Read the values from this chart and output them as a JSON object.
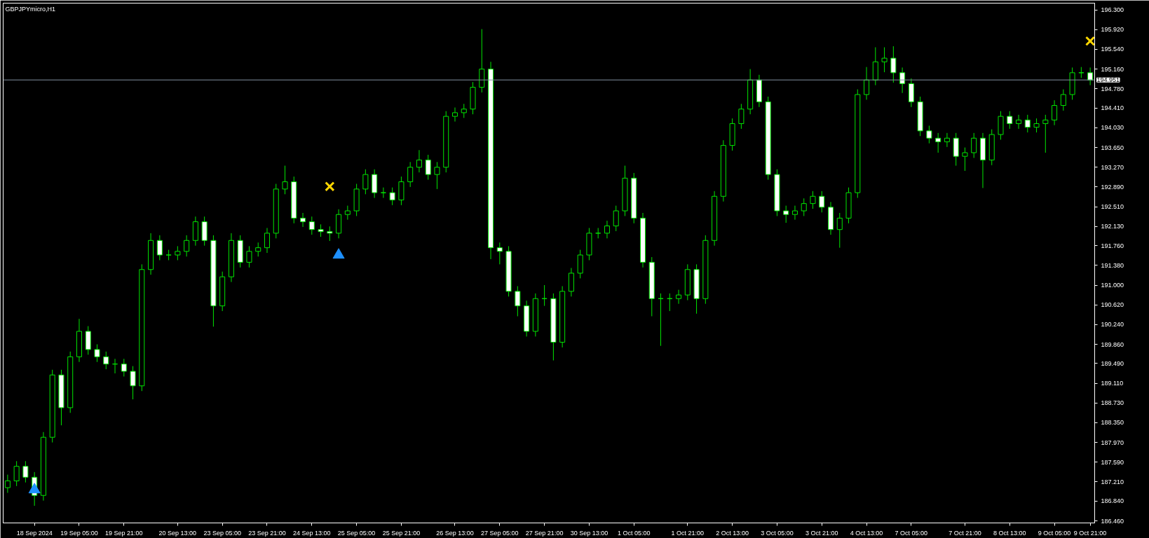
{
  "chart_data": {
    "type": "candlestick",
    "title": "GBPJPYmicro,H1",
    "categories": [
      null,
      null,
      null,
      "18 Sep 2024",
      null,
      null,
      null,
      null,
      "19 Sep 05:00",
      null,
      null,
      null,
      null,
      "19 Sep 21:00",
      null,
      null,
      null,
      null,
      null,
      "20 Sep 13:00",
      null,
      null,
      null,
      null,
      "23 Sep 05:00",
      null,
      null,
      null,
      null,
      "23 Sep 21:00",
      null,
      null,
      null,
      null,
      "24 Sep 13:00",
      null,
      null,
      null,
      null,
      "25 Sep 05:00",
      null,
      null,
      null,
      null,
      "25 Sep 21:00",
      null,
      null,
      null,
      null,
      null,
      "26 Sep 13:00",
      null,
      null,
      null,
      null,
      "27 Sep 05:00",
      null,
      null,
      null,
      null,
      "27 Sep 21:00",
      null,
      null,
      null,
      null,
      "30 Sep 13:00",
      null,
      null,
      null,
      null,
      "1 Oct 05:00",
      null,
      null,
      null,
      null,
      null,
      "1 Oct 21:00",
      null,
      null,
      null,
      null,
      "2 Oct 13:00",
      null,
      null,
      null,
      null,
      "3 Oct 05:00",
      null,
      null,
      null,
      null,
      "3 Oct 21:00",
      null,
      null,
      null,
      null,
      "4 Oct 13:00",
      null,
      null,
      null,
      null,
      "7 Oct 05:00",
      null,
      null,
      null,
      null,
      null,
      "7 Oct 21:00",
      null,
      null,
      null,
      null,
      "8 Oct 13:00",
      null,
      null,
      null,
      null,
      "9 Oct 05:00",
      null,
      null,
      null,
      "9 Oct 21:00"
    ],
    "ohlc": [
      [
        187.1,
        187.35,
        187.0,
        187.23
      ],
      [
        187.23,
        187.61,
        187.13,
        187.51
      ],
      [
        187.51,
        187.61,
        187.2,
        187.3
      ],
      [
        187.3,
        187.4,
        186.75,
        186.95
      ],
      [
        186.95,
        188.17,
        186.85,
        188.07
      ],
      [
        188.07,
        189.37,
        187.97,
        189.27
      ],
      [
        189.27,
        189.37,
        188.3,
        188.64
      ],
      [
        188.64,
        189.72,
        188.54,
        189.62
      ],
      [
        189.62,
        190.35,
        189.52,
        190.11
      ],
      [
        190.11,
        190.21,
        189.66,
        189.76
      ],
      [
        189.76,
        189.86,
        189.52,
        189.62
      ],
      [
        189.62,
        189.72,
        189.38,
        189.48
      ],
      [
        189.48,
        189.58,
        189.3,
        189.48
      ],
      [
        189.48,
        189.58,
        189.24,
        189.34
      ],
      [
        189.34,
        189.44,
        188.8,
        189.06
      ],
      [
        189.06,
        191.4,
        188.96,
        191.3
      ],
      [
        191.3,
        192.0,
        191.2,
        191.86
      ],
      [
        191.86,
        191.96,
        191.48,
        191.58
      ],
      [
        191.58,
        191.68,
        191.48,
        191.58
      ],
      [
        191.58,
        191.75,
        191.48,
        191.65
      ],
      [
        191.65,
        191.96,
        191.55,
        191.86
      ],
      [
        191.86,
        192.32,
        191.76,
        192.22
      ],
      [
        192.22,
        192.32,
        191.76,
        191.86
      ],
      [
        191.86,
        191.96,
        190.2,
        190.6
      ],
      [
        190.6,
        191.26,
        190.5,
        191.16
      ],
      [
        191.16,
        192.0,
        191.06,
        191.86
      ],
      [
        191.86,
        191.96,
        191.34,
        191.44
      ],
      [
        191.44,
        191.75,
        191.34,
        191.65
      ],
      [
        191.65,
        191.82,
        191.55,
        191.72
      ],
      [
        191.72,
        192.1,
        191.62,
        192.0
      ],
      [
        192.0,
        192.95,
        191.9,
        192.85
      ],
      [
        192.85,
        193.3,
        192.75,
        192.99
      ],
      [
        192.99,
        193.09,
        192.19,
        192.29
      ],
      [
        192.29,
        192.39,
        192.12,
        192.22
      ],
      [
        192.22,
        192.32,
        191.97,
        192.07
      ],
      [
        192.07,
        192.17,
        191.93,
        192.03
      ],
      [
        192.03,
        192.13,
        191.85,
        192.0
      ],
      [
        192.0,
        192.46,
        191.9,
        192.36
      ],
      [
        192.36,
        192.53,
        192.26,
        192.43
      ],
      [
        192.43,
        192.95,
        192.33,
        192.85
      ],
      [
        192.85,
        193.23,
        192.75,
        193.13
      ],
      [
        193.13,
        193.23,
        192.68,
        192.78
      ],
      [
        192.78,
        192.88,
        192.68,
        192.78
      ],
      [
        192.78,
        192.88,
        192.54,
        192.64
      ],
      [
        192.64,
        193.09,
        192.54,
        192.99
      ],
      [
        192.99,
        193.37,
        192.89,
        193.27
      ],
      [
        193.27,
        193.6,
        193.17,
        193.41
      ],
      [
        193.41,
        193.51,
        193.03,
        193.13
      ],
      [
        193.13,
        193.37,
        192.85,
        193.27
      ],
      [
        193.27,
        194.35,
        193.17,
        194.25
      ],
      [
        194.25,
        194.42,
        194.15,
        194.32
      ],
      [
        194.32,
        194.49,
        194.22,
        194.39
      ],
      [
        194.39,
        194.91,
        194.29,
        194.81
      ],
      [
        194.81,
        195.93,
        194.71,
        195.16
      ],
      [
        195.16,
        195.3,
        191.5,
        191.72
      ],
      [
        191.72,
        191.82,
        191.4,
        191.65
      ],
      [
        191.65,
        191.75,
        190.78,
        190.88
      ],
      [
        190.88,
        190.98,
        190.4,
        190.6
      ],
      [
        190.6,
        190.7,
        190.01,
        190.11
      ],
      [
        190.11,
        190.84,
        190.01,
        190.74
      ],
      [
        190.74,
        191.0,
        190.6,
        190.74
      ],
      [
        190.74,
        190.84,
        189.55,
        189.9
      ],
      [
        189.9,
        190.98,
        189.8,
        190.88
      ],
      [
        190.88,
        191.33,
        190.78,
        191.23
      ],
      [
        191.23,
        191.68,
        191.13,
        191.58
      ],
      [
        191.58,
        192.1,
        191.48,
        192.0
      ],
      [
        192.0,
        192.1,
        191.9,
        192.0
      ],
      [
        192.0,
        192.24,
        191.9,
        192.14
      ],
      [
        192.14,
        192.53,
        192.04,
        192.43
      ],
      [
        192.43,
        193.3,
        192.33,
        193.06
      ],
      [
        193.06,
        193.16,
        192.19,
        192.29
      ],
      [
        192.29,
        192.39,
        191.34,
        191.44
      ],
      [
        191.44,
        191.54,
        190.4,
        190.74
      ],
      [
        190.74,
        190.84,
        189.83,
        190.74
      ],
      [
        190.74,
        190.84,
        190.5,
        190.74
      ],
      [
        190.74,
        190.91,
        190.64,
        190.81
      ],
      [
        190.81,
        191.4,
        190.71,
        191.3
      ],
      [
        191.3,
        191.4,
        190.45,
        190.74
      ],
      [
        190.74,
        191.96,
        190.64,
        191.86
      ],
      [
        191.86,
        192.81,
        191.76,
        192.71
      ],
      [
        192.71,
        193.79,
        192.61,
        193.69
      ],
      [
        193.69,
        194.21,
        193.59,
        194.11
      ],
      [
        194.11,
        194.49,
        194.01,
        194.39
      ],
      [
        194.39,
        195.16,
        194.29,
        194.95
      ],
      [
        194.95,
        195.05,
        194.43,
        194.53
      ],
      [
        194.53,
        194.63,
        193.03,
        193.13
      ],
      [
        193.13,
        193.23,
        192.33,
        192.43
      ],
      [
        192.43,
        192.53,
        192.2,
        192.36
      ],
      [
        192.36,
        192.53,
        192.26,
        192.43
      ],
      [
        192.43,
        192.67,
        192.33,
        192.57
      ],
      [
        192.57,
        192.81,
        192.47,
        192.71
      ],
      [
        192.71,
        192.81,
        192.4,
        192.5
      ],
      [
        192.5,
        192.6,
        191.97,
        192.07
      ],
      [
        192.07,
        192.39,
        191.72,
        192.29
      ],
      [
        192.29,
        192.88,
        192.19,
        192.78
      ],
      [
        192.78,
        194.77,
        192.68,
        194.67
      ],
      [
        194.67,
        195.2,
        194.57,
        194.95
      ],
      [
        194.95,
        195.58,
        194.85,
        195.3
      ],
      [
        195.3,
        195.58,
        195.1,
        195.37
      ],
      [
        195.37,
        195.6,
        194.9,
        195.09
      ],
      [
        195.09,
        195.19,
        194.7,
        194.88
      ],
      [
        194.88,
        194.98,
        194.43,
        194.53
      ],
      [
        194.53,
        194.63,
        193.87,
        193.97
      ],
      [
        193.97,
        194.07,
        193.73,
        193.83
      ],
      [
        193.83,
        193.93,
        193.55,
        193.76
      ],
      [
        193.76,
        193.93,
        193.66,
        193.83
      ],
      [
        193.83,
        193.93,
        193.3,
        193.48
      ],
      [
        193.48,
        193.65,
        193.2,
        193.55
      ],
      [
        193.55,
        193.93,
        193.45,
        193.83
      ],
      [
        193.83,
        193.93,
        192.87,
        193.41
      ],
      [
        193.41,
        194.0,
        193.31,
        193.9
      ],
      [
        193.9,
        194.35,
        193.8,
        194.25
      ],
      [
        194.25,
        194.35,
        194.01,
        194.11
      ],
      [
        194.11,
        194.28,
        194.01,
        194.18
      ],
      [
        194.18,
        194.28,
        193.94,
        194.04
      ],
      [
        194.04,
        194.21,
        193.94,
        194.11
      ],
      [
        194.11,
        194.28,
        193.55,
        194.18
      ],
      [
        194.18,
        194.56,
        194.08,
        194.46
      ],
      [
        194.46,
        194.77,
        194.36,
        194.67
      ],
      [
        194.67,
        195.19,
        194.57,
        195.09
      ],
      [
        195.09,
        195.2,
        194.99,
        195.09
      ],
      [
        195.09,
        195.19,
        194.85,
        194.95
      ]
    ],
    "color": "#00e600",
    "series": [
      {
        "type": "scatter",
        "marker": "triangle",
        "color": "#1e90ff",
        "values": [
          null,
          null,
          null,
          187.06,
          null,
          null,
          null,
          null,
          null,
          null,
          null,
          null,
          null,
          null,
          null,
          null,
          null,
          null,
          null,
          null,
          null,
          null,
          null,
          null,
          null,
          null,
          null,
          null,
          null,
          null,
          null,
          null,
          null,
          null,
          null,
          null,
          null,
          191.58,
          null,
          null,
          null,
          null,
          null,
          null,
          null,
          null,
          null,
          null,
          null,
          null,
          null,
          null,
          null,
          null,
          null,
          null,
          null,
          null,
          null,
          null,
          null,
          null,
          null,
          null,
          null,
          null,
          null,
          null,
          null,
          null,
          null,
          null,
          null,
          null,
          null,
          null,
          null,
          null,
          null,
          null,
          null,
          null,
          null,
          null,
          null,
          null,
          null,
          null,
          null,
          null,
          null,
          null,
          null,
          null,
          null,
          null,
          null,
          null,
          null,
          null,
          null,
          null,
          null,
          null,
          null,
          null,
          null,
          null,
          null,
          null,
          null,
          null,
          null,
          null,
          null,
          null,
          null,
          null,
          null,
          null,
          null,
          null
        ]
      },
      {
        "type": "scatter",
        "marker": "cross",
        "color": "#ffd700",
        "values": [
          null,
          null,
          null,
          null,
          null,
          null,
          null,
          null,
          null,
          null,
          null,
          null,
          null,
          null,
          null,
          null,
          null,
          null,
          null,
          null,
          null,
          null,
          null,
          null,
          null,
          null,
          null,
          null,
          null,
          null,
          null,
          null,
          null,
          null,
          null,
          null,
          192.9,
          null,
          null,
          null,
          null,
          null,
          null,
          null,
          null,
          null,
          null,
          null,
          null,
          null,
          null,
          null,
          null,
          null,
          null,
          null,
          null,
          null,
          null,
          null,
          null,
          null,
          null,
          null,
          null,
          null,
          null,
          null,
          null,
          null,
          null,
          null,
          null,
          null,
          null,
          null,
          null,
          null,
          null,
          null,
          null,
          null,
          null,
          null,
          null,
          null,
          null,
          null,
          null,
          null,
          null,
          null,
          null,
          null,
          null,
          null,
          null,
          null,
          null,
          null,
          null,
          null,
          null,
          null,
          null,
          null,
          null,
          null,
          null,
          null,
          null,
          null,
          null,
          null,
          null,
          null,
          null,
          null,
          null,
          null,
          null,
          195.7
        ]
      }
    ],
    "ylim": [
      186.42,
      196.43
    ],
    "yticks": [
      {
        "value": 186.46,
        "label": "186.460"
      },
      {
        "value": 186.84,
        "label": "186.840"
      },
      {
        "value": 187.21,
        "label": "187.210"
      },
      {
        "value": 187.59,
        "label": "187.590"
      },
      {
        "value": 187.97,
        "label": "187.970"
      },
      {
        "value": 188.35,
        "label": "188.350"
      },
      {
        "value": 188.73,
        "label": "188.730"
      },
      {
        "value": 189.11,
        "label": "189.110"
      },
      {
        "value": 189.49,
        "label": "189.490"
      },
      {
        "value": 189.86,
        "label": "189.860"
      },
      {
        "value": 190.24,
        "label": "190.240"
      },
      {
        "value": 190.62,
        "label": "190.620"
      },
      {
        "value": 191.0,
        "label": "191.000"
      },
      {
        "value": 191.38,
        "label": "191.380"
      },
      {
        "value": 191.76,
        "label": "191.760"
      },
      {
        "value": 192.13,
        "label": "192.130"
      },
      {
        "value": 192.51,
        "label": "192.510"
      },
      {
        "value": 192.89,
        "label": "192.890"
      },
      {
        "value": 193.27,
        "label": "193.270"
      },
      {
        "value": 193.65,
        "label": "193.650"
      },
      {
        "value": 194.03,
        "label": "194.030"
      },
      {
        "value": 194.41,
        "label": "194.410"
      },
      {
        "value": 194.78,
        "label": "194.780"
      },
      {
        "value": 195.16,
        "label": "195.160"
      },
      {
        "value": 195.54,
        "label": "195.540"
      },
      {
        "value": 195.92,
        "label": "195.920"
      },
      {
        "value": 196.3,
        "label": "196.300"
      }
    ],
    "ref_lines": [
      {
        "axis": "y",
        "value": 194.951,
        "label": "194.951",
        "color": "#8090a0"
      }
    ],
    "grid": false
  }
}
